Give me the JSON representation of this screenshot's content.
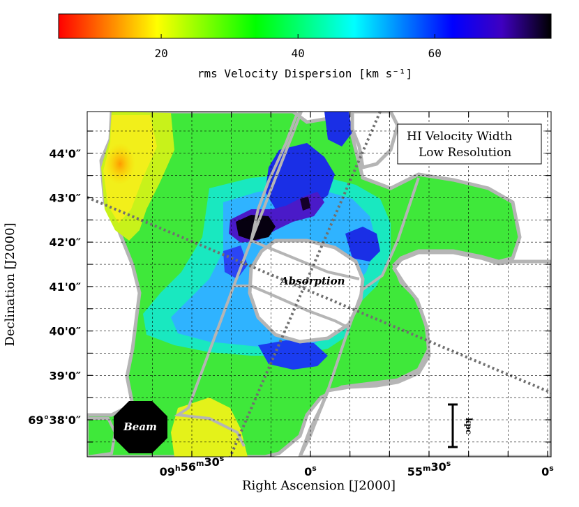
{
  "chart_data": {
    "type": "heatmap",
    "colorbar": {
      "label": "rms Velocity Dispersion [km s⁻¹]",
      "range": [
        5,
        77
      ],
      "ticks": [
        {
          "value": 20,
          "label": "20"
        },
        {
          "value": 40,
          "label": "40"
        },
        {
          "value": 60,
          "label": "60"
        }
      ],
      "stops": [
        "#ff0000",
        "#ff7f00",
        "#ffff00",
        "#7fff00",
        "#00ff00",
        "#00ff7f",
        "#00ffff",
        "#007fff",
        "#0000ff",
        "#3f00c0",
        "#000000"
      ]
    },
    "xlabel": "Right Ascension [J2000]",
    "ylabel": "Declination [J2000]",
    "x_ticks": [
      {
        "value": 45,
        "h": "09",
        "m": "56",
        "s": "30",
        "label": "09h56m30s"
      },
      {
        "value": 30,
        "s": "0",
        "label": "0s"
      },
      {
        "value": 15,
        "m": "55",
        "s": "30",
        "label": "55m30s"
      },
      {
        "value": 0,
        "s": "0",
        "label": "0s"
      }
    ],
    "y_ticks": [
      {
        "value": 38,
        "label": "69°38'0″"
      },
      {
        "value": 39,
        "label": "39'0″"
      },
      {
        "value": 40,
        "label": "40'0″"
      },
      {
        "value": 41,
        "label": "41'0″"
      },
      {
        "value": 42,
        "label": "42'0″"
      },
      {
        "value": 43,
        "label": "43'0″"
      },
      {
        "value": 44,
        "label": "44'0″"
      }
    ],
    "legend": {
      "line1": "HI Velocity Width",
      "line2": "Low Resolution",
      "position": "top-right"
    },
    "annotations": {
      "absorption": "Absorption",
      "beam": "Beam",
      "scale_bar": "kpc"
    },
    "grid": true
  }
}
